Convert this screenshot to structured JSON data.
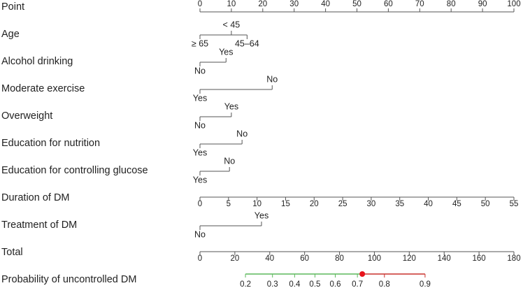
{
  "chart_data": {
    "type": "nomogram",
    "points_axis": {
      "label": "Point",
      "xlim": [
        0,
        100
      ],
      "xticks": [
        0,
        10,
        20,
        30,
        40,
        50,
        60,
        70,
        80,
        90,
        100
      ]
    },
    "predictors": [
      {
        "label": "Age",
        "levels": [
          {
            "label": "< 45",
            "points": 10
          },
          {
            "label": "≥ 65",
            "points": 0
          },
          {
            "label": "45–64",
            "points": 15
          }
        ]
      },
      {
        "label": "Alcohol drinking",
        "levels": [
          {
            "label": "Yes",
            "points": 8.3
          },
          {
            "label": "No",
            "points": 0
          }
        ]
      },
      {
        "label": "Moderate exercise",
        "levels": [
          {
            "label": "No",
            "points": 23
          },
          {
            "label": "Yes",
            "points": 0
          }
        ]
      },
      {
        "label": "Overweight",
        "levels": [
          {
            "label": "Yes",
            "points": 10
          },
          {
            "label": "No",
            "points": 0
          }
        ]
      },
      {
        "label": "Education for nutrition",
        "levels": [
          {
            "label": "No",
            "points": 13.4
          },
          {
            "label": "Yes",
            "points": 0
          }
        ]
      },
      {
        "label": "Education for controlling glucose",
        "levels": [
          {
            "label": "No",
            "points": 9.4
          },
          {
            "label": "Yes",
            "points": 0
          }
        ]
      },
      {
        "label": "Duration of DM",
        "xlim": [
          0,
          55
        ],
        "xticks": [
          0,
          5,
          10,
          15,
          20,
          25,
          30,
          35,
          40,
          45,
          50,
          55
        ]
      },
      {
        "label": "Treatment of DM",
        "levels": [
          {
            "label": "Yes",
            "points": 19.6
          },
          {
            "label": "No",
            "points": 0
          }
        ]
      }
    ],
    "total_axis": {
      "label": "Total",
      "xlim": [
        0,
        180
      ],
      "xticks": [
        0,
        20,
        40,
        60,
        80,
        100,
        120,
        140,
        160,
        180
      ]
    },
    "probability": {
      "label": "Probability of uncontrolled DM",
      "xticks": [
        0.2,
        0.3,
        0.4,
        0.5,
        0.6,
        0.7,
        0.8,
        0.9
      ],
      "logit_intercept": -2.294,
      "logit_slope": 0.0348,
      "marker": 0.72,
      "colors": [
        "#5cb85c",
        "#c9302c"
      ],
      "marker_color": "#e8141c"
    }
  }
}
